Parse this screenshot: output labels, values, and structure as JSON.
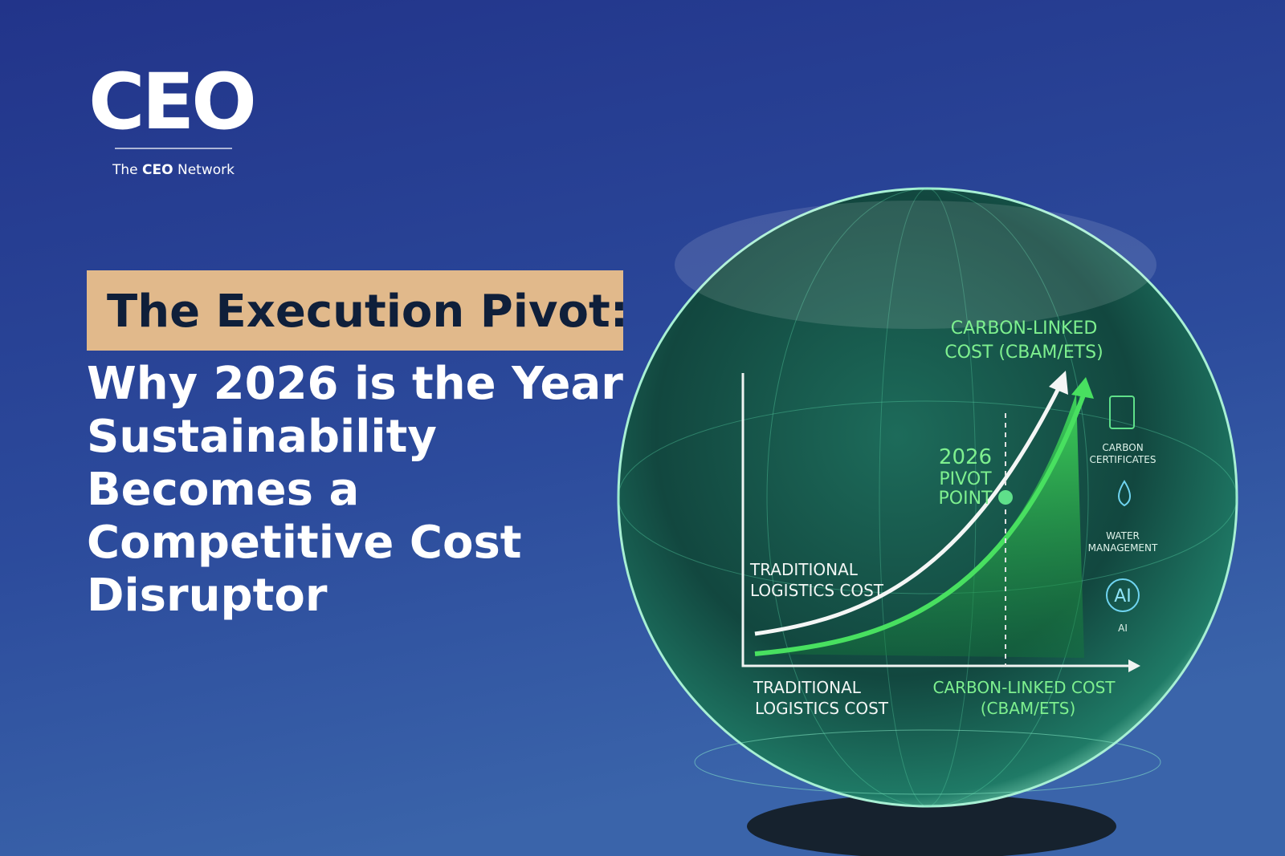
{
  "logo": {
    "mark": "CEO",
    "tagline_prefix": "The",
    "tagline_bold": "CEO",
    "tagline_suffix": "Network"
  },
  "headline": {
    "highlight": "The Execution Pivot:",
    "lines": [
      "Why 2026 is the Year",
      "Sustainability",
      "Becomes a",
      "Competitive Cost",
      "Disruptor"
    ]
  },
  "globe": {
    "curve_label_top": [
      "CARBON-LINKED",
      "COST (CBAM/ETS)"
    ],
    "pivot": [
      "2026",
      "PIVOT",
      "POINT"
    ],
    "curve_label_left": [
      "TRADITIONAL",
      "LOGISTICS COST"
    ],
    "axis_left": [
      "TRADITIONAL",
      "LOGISTICS COST"
    ],
    "axis_right": [
      "CARBON-LINKED COST",
      "(CBAM/ETS)"
    ],
    "icons": [
      {
        "label": [
          "CARBON",
          "CERTIFICATES"
        ]
      },
      {
        "label": [
          "WATER",
          "MANAGEMENT"
        ]
      },
      {
        "symbol": "AI",
        "label": [
          "AI"
        ]
      }
    ]
  }
}
